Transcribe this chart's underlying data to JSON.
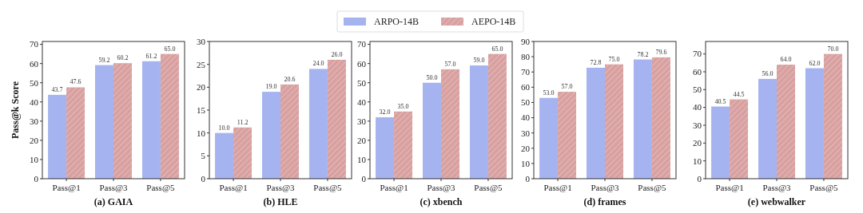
{
  "chart_data": [
    {
      "type": "bar",
      "title": "(a) GAIA",
      "ylabel": "Pass@k Score",
      "categories": [
        "Pass@1",
        "Pass@3",
        "Pass@5"
      ],
      "legend": "top",
      "ylim": [
        0,
        71.5
      ],
      "yticks": [
        0,
        10,
        20,
        30,
        40,
        50,
        60,
        70
      ],
      "series": [
        {
          "name": "ARPO-14B",
          "color": "#a5b4f0",
          "values": [
            43.7,
            59.2,
            61.2
          ],
          "value_labels": [
            "43.7",
            "59.2",
            "61.2"
          ]
        },
        {
          "name": "AEPO-14B",
          "color": "#d9a0a0",
          "values": [
            47.6,
            60.2,
            65.0
          ],
          "value_labels": [
            "47.6",
            "60.2",
            "65.0"
          ]
        }
      ]
    },
    {
      "type": "bar",
      "title": "(b) HLE",
      "categories": [
        "Pass@1",
        "Pass@3",
        "Pass@5"
      ],
      "ylim": [
        0,
        30
      ],
      "yticks": [
        0,
        5,
        10,
        15,
        20,
        25,
        30
      ],
      "series": [
        {
          "color": "#a5b4f0",
          "values": [
            10.0,
            19.0,
            24.0
          ],
          "value_labels": [
            "10.0",
            "19.0",
            "24.0"
          ]
        },
        {
          "color": "#d9a0a0",
          "values": [
            11.2,
            20.6,
            26.0
          ],
          "value_labels": [
            "11.2",
            "20.6",
            "26.0"
          ]
        }
      ]
    },
    {
      "type": "bar",
      "title": "(c) xbench",
      "categories": [
        "Pass@1",
        "Pass@3",
        "Pass@5"
      ],
      "ylim": [
        0,
        71.5
      ],
      "yticks": [
        0,
        10,
        20,
        30,
        40,
        50,
        60,
        70
      ],
      "series": [
        {
          "color": "#a5b4f0",
          "values": [
            32.0,
            50.0,
            59.0
          ],
          "value_labels": [
            "32.0",
            "50.0",
            "59.0"
          ]
        },
        {
          "color": "#d9a0a0",
          "values": [
            35.0,
            57.0,
            65.0
          ],
          "value_labels": [
            "35.0",
            "57.0",
            "65.0"
          ]
        }
      ]
    },
    {
      "type": "bar",
      "title": "(d) frames",
      "categories": [
        "Pass@1",
        "Pass@3",
        "Pass@5"
      ],
      "ylim": [
        0,
        90
      ],
      "yticks": [
        0,
        10,
        20,
        30,
        40,
        50,
        60,
        70,
        80,
        90
      ],
      "series": [
        {
          "color": "#a5b4f0",
          "values": [
            53.0,
            72.8,
            78.2
          ],
          "value_labels": [
            "53.0",
            "72.8",
            "78.2"
          ]
        },
        {
          "color": "#d9a0a0",
          "values": [
            57.0,
            75.0,
            79.6
          ],
          "value_labels": [
            "57.0",
            "75.0",
            "79.6"
          ]
        }
      ]
    },
    {
      "type": "bar",
      "title": "(e) webwalker",
      "categories": [
        "Pass@1",
        "Pass@3",
        "Pass@5"
      ],
      "ylim": [
        0,
        77
      ],
      "yticks": [
        0,
        10,
        20,
        30,
        40,
        50,
        60,
        70
      ],
      "series": [
        {
          "color": "#a5b4f0",
          "values": [
            40.5,
            56.0,
            62.0
          ],
          "value_labels": [
            "40.5",
            "56.0",
            "62.0"
          ]
        },
        {
          "color": "#d9a0a0",
          "values": [
            44.5,
            64.0,
            70.0
          ],
          "value_labels": [
            "44.5",
            "64.0",
            "70.0"
          ]
        }
      ]
    }
  ]
}
